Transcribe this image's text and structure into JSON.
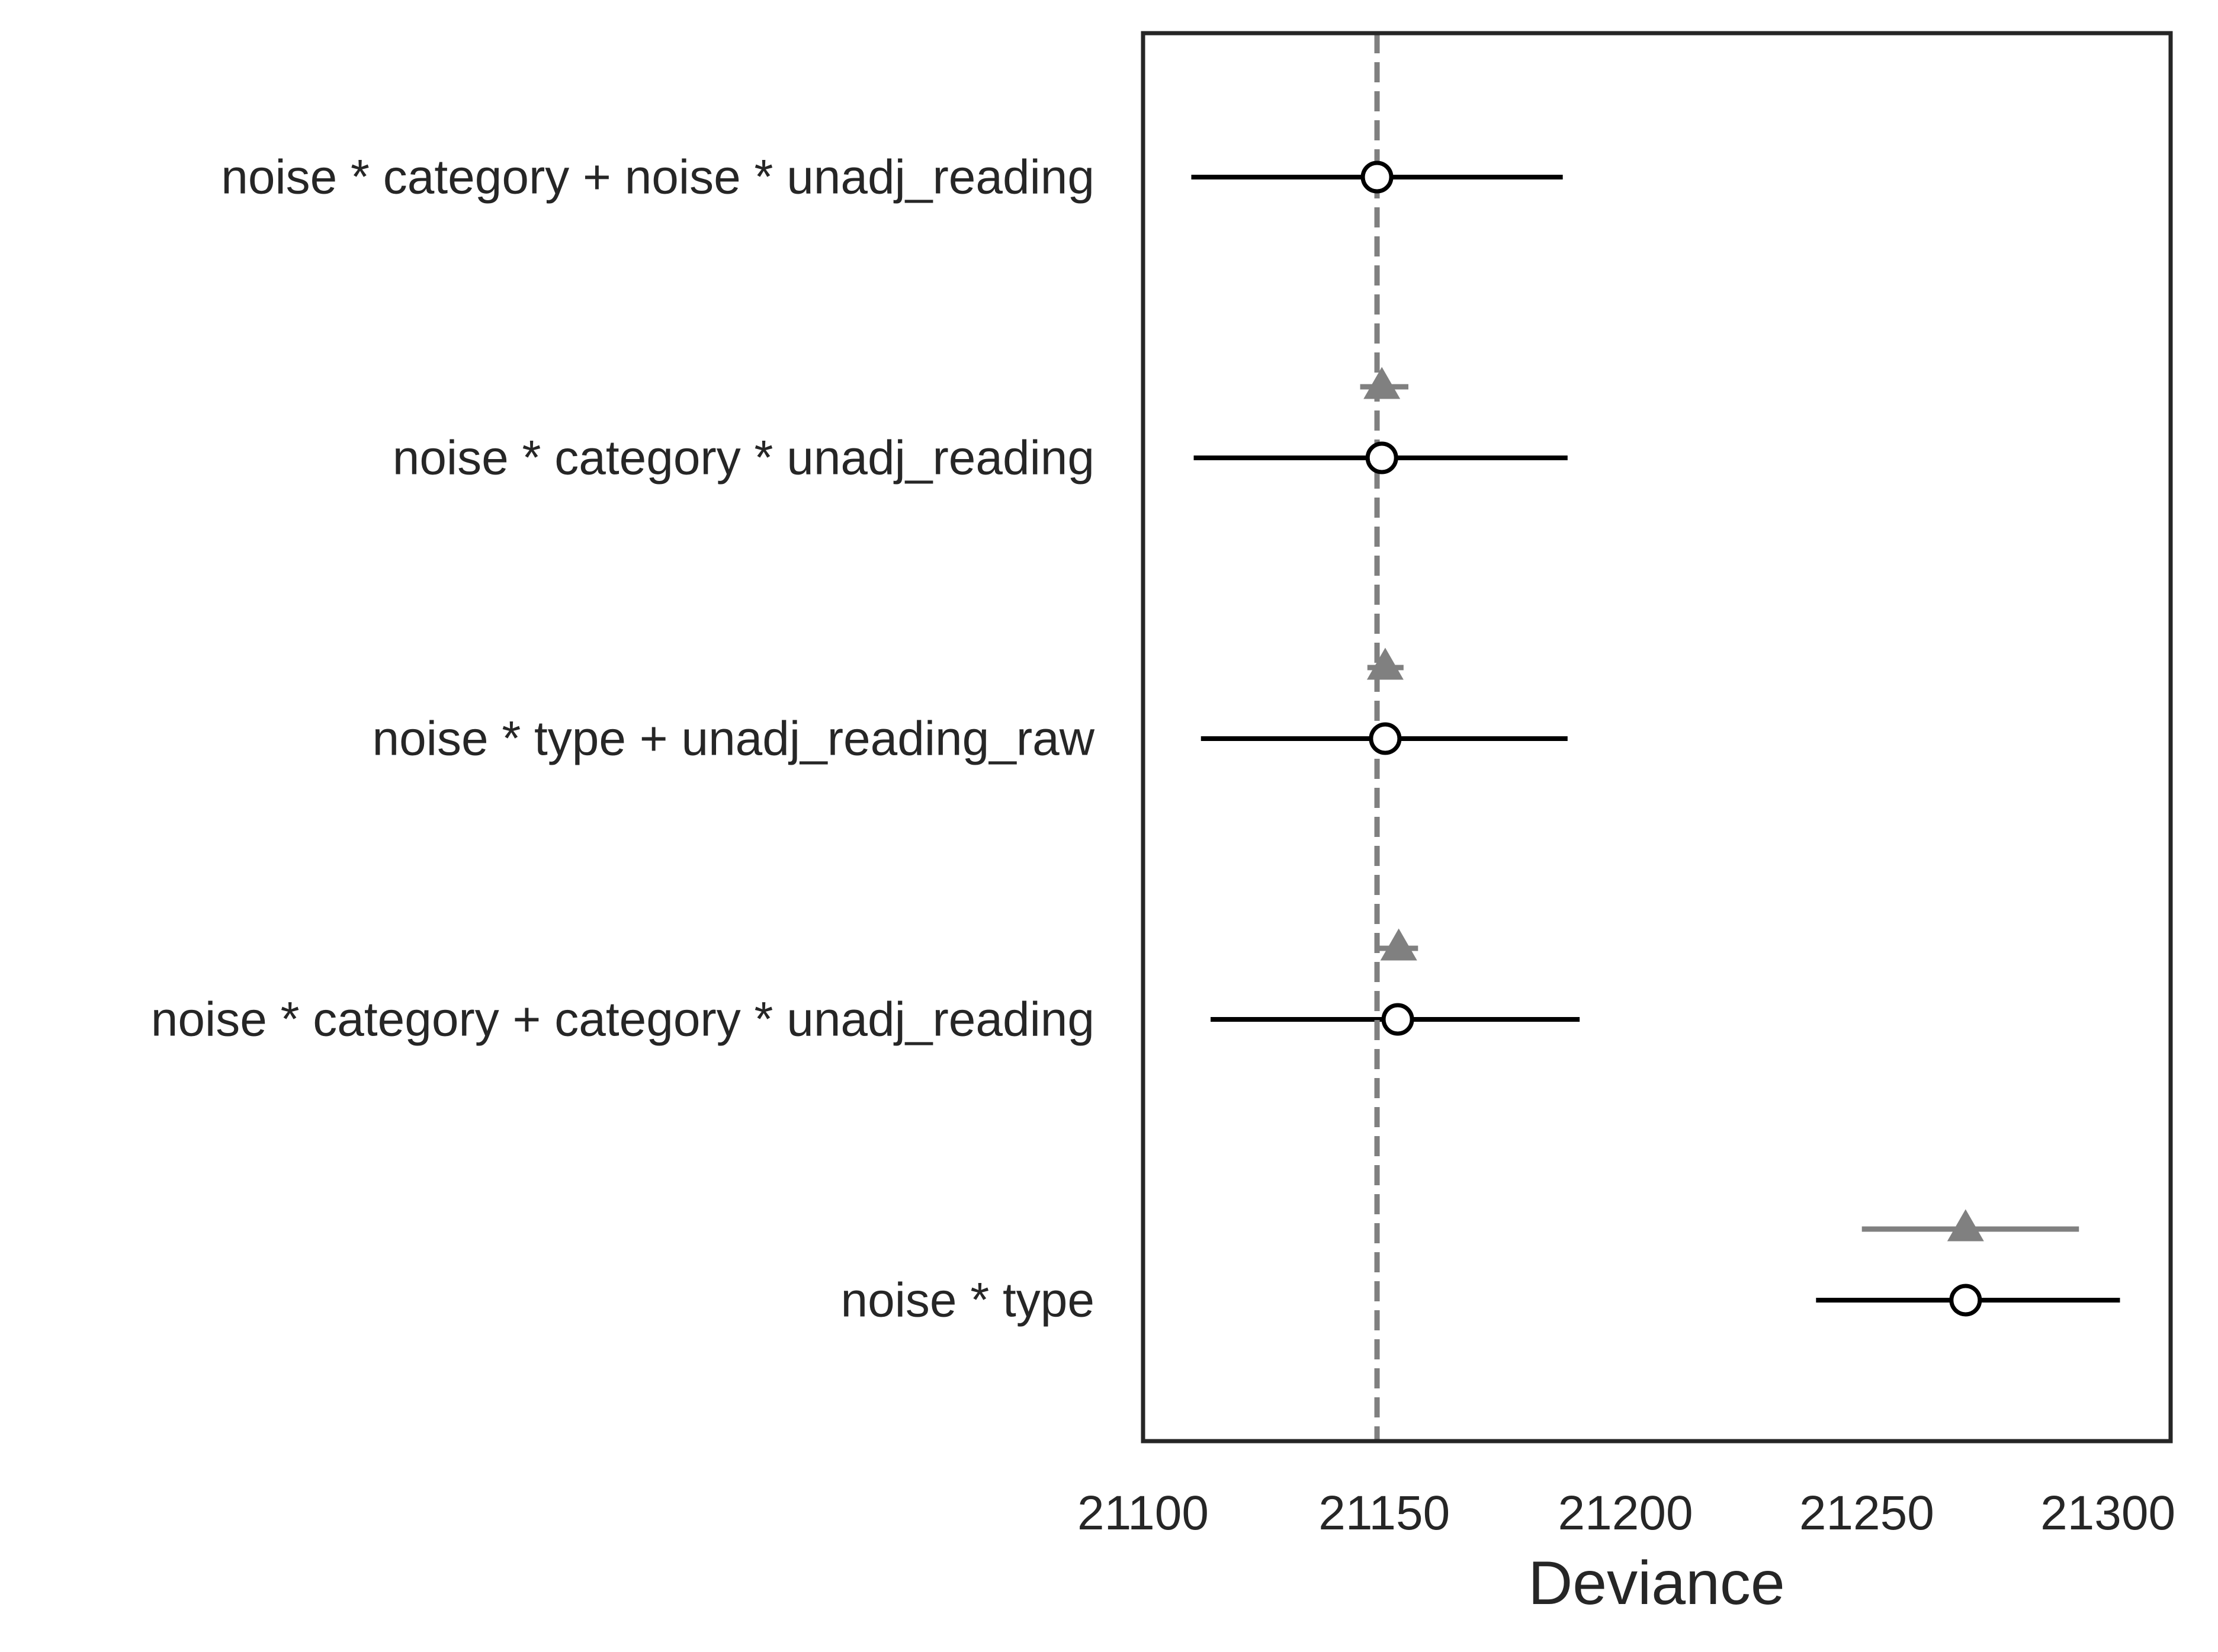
{
  "chart_data": {
    "type": "scatter",
    "subtype": "forest-plot-with-error-bars",
    "title": "",
    "xlabel": "Deviance",
    "ylabel": "",
    "xlim": [
      21100,
      21313
    ],
    "xticks": [
      21100,
      21150,
      21200,
      21250,
      21300
    ],
    "grid": false,
    "legend": null,
    "reference_line": {
      "x": 21148.5,
      "style": "dashed",
      "color": "#808080"
    },
    "colors": {
      "circle_series": "#000000",
      "triangle_series": "#808080",
      "frame": "#262626",
      "text": "#262626"
    },
    "categories": [
      "noise * category + noise * unadj_reading",
      "noise * category * unadj_reading",
      "noise * type + unadj_reading_raw",
      "noise * category + category * unadj_reading",
      "noise * type"
    ],
    "series": [
      {
        "marker": "circle",
        "values": [
          21148.5,
          21149.5,
          21150.2,
          21152.8,
          21270.5
        ],
        "ci_low": [
          21110,
          21110.5,
          21112,
          21114,
          21239.5
        ],
        "ci_high": [
          21187,
          21188,
          21188,
          21190.5,
          21302.5
        ]
      },
      {
        "marker": "triangle",
        "values": [
          null,
          21149.5,
          21150.2,
          21153,
          21270.5
        ],
        "ci_low": [
          null,
          21145,
          21146.5,
          21149,
          21249
        ],
        "ci_high": [
          null,
          21155,
          21154,
          21157,
          21294
        ]
      }
    ]
  }
}
